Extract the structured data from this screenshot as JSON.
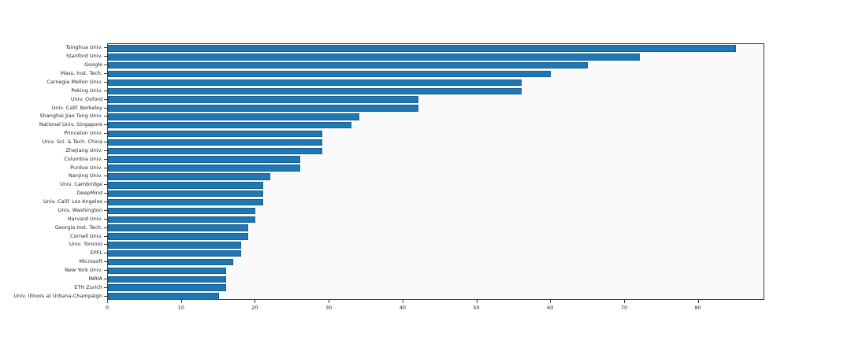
{
  "chart_data": {
    "type": "bar",
    "orientation": "horizontal",
    "title": "",
    "xlabel": "",
    "ylabel": "",
    "categories": [
      "Tsinghua Univ.",
      "Stanford Univ.",
      "Google",
      "Mass. Inst. Tech.",
      "Carnegie Mellon Univ.",
      "Peking Univ.",
      "Univ. Oxford",
      "Univ. Calif. Berkeley",
      "Shanghai Jiao Tong Univ.",
      "National Univ. Singapore",
      "Princeton Univ.",
      "Univ. Sci. & Tech. China",
      "Zhejiang Univ.",
      "Columbia Univ.",
      "Purdue Univ.",
      "Nanjing Univ.",
      "Univ. Cambridge",
      "DeepMind",
      "Univ. Calif. Los Angeles",
      "Univ. Washington",
      "Harvard Univ.",
      "Georgia Inst. Tech.",
      "Cornell Univ.",
      "Univ. Toronto",
      "EPFL",
      "Microsoft",
      "New York Univ.",
      "INRIA",
      "ETH Zurich",
      "Univ. Illinois at Urbana-Champaign"
    ],
    "values": [
      85,
      72,
      65,
      60,
      56,
      56,
      42,
      42,
      34,
      33,
      29,
      29,
      29,
      26,
      26,
      22,
      21,
      21,
      21,
      20,
      20,
      19,
      19,
      18,
      18,
      17,
      16,
      16,
      16,
      15
    ],
    "xticks": [
      0,
      10,
      20,
      30,
      40,
      50,
      60,
      70,
      80
    ],
    "xlim": [
      0,
      89
    ],
    "grid": false,
    "legend": null,
    "bar_color": "#1f77b4",
    "bar_edge_color": "#175d8e",
    "plot_bg": "#fafafa"
  }
}
